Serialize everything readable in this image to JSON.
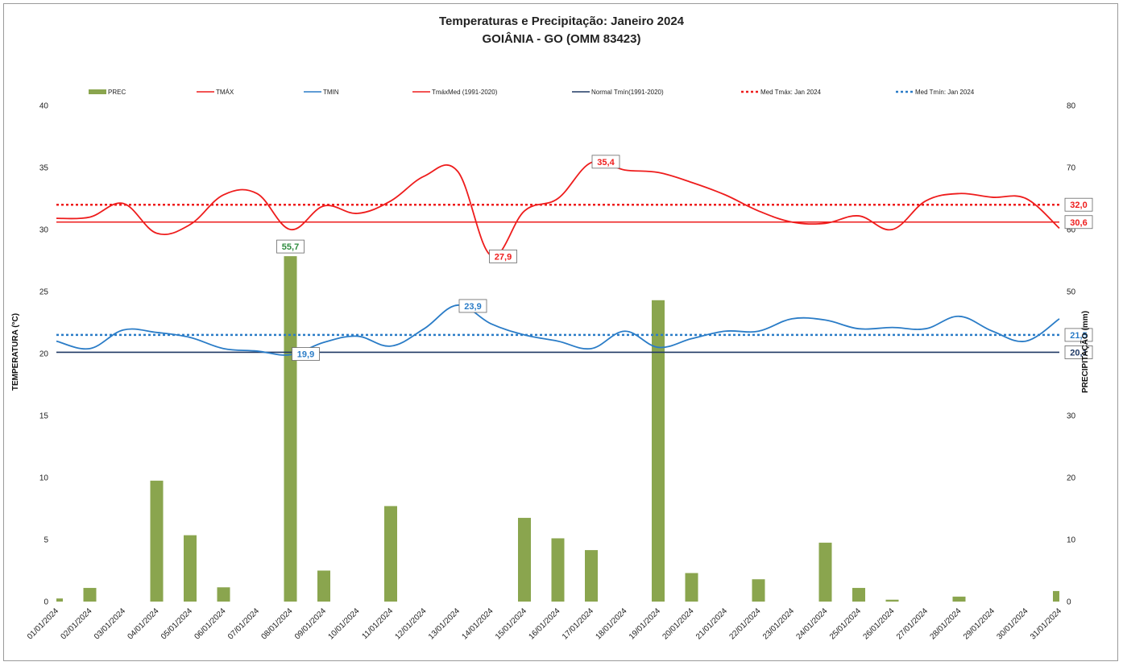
{
  "chart_data": {
    "type": "bar+line",
    "title": "Temperaturas e Precipitação: Janeiro 2024",
    "subtitle": "GOIÂNIA - GO (OMM 83423)",
    "ylabel_left": "TEMPERATURA  (°C)",
    "ylabel_right": "PRECIPITAÇÃO (mm)",
    "ylim_left": [
      0,
      40
    ],
    "ylim_right": [
      0,
      80
    ],
    "yticks_left": [
      "0",
      "5",
      "10",
      "15",
      "20",
      "25",
      "30",
      "35",
      "40"
    ],
    "yticks_right": [
      "0",
      "10",
      "20",
      "30",
      "40",
      "50",
      "60",
      "70",
      "80"
    ],
    "legend_position": "top",
    "categories": [
      "01/01/2024",
      "02/01/2024",
      "03/01/2024",
      "04/01/2024",
      "05/01/2024",
      "06/01/2024",
      "07/01/2024",
      "08/01/2024",
      "09/01/2024",
      "10/01/2024",
      "11/01/2024",
      "12/01/2024",
      "13/01/2024",
      "14/01/2024",
      "15/01/2024",
      "16/01/2024",
      "17/01/2024",
      "18/01/2024",
      "19/01/2024",
      "20/01/2024",
      "21/01/2024",
      "22/01/2024",
      "23/01/2024",
      "24/01/2024",
      "25/01/2024",
      "26/01/2024",
      "27/01/2024",
      "28/01/2024",
      "29/01/2024",
      "30/01/2024",
      "31/01/2024"
    ],
    "series": [
      {
        "name": "PREC",
        "kind": "bar",
        "axis": "right",
        "color": "#8aa54e",
        "values": [
          0.5,
          2.2,
          0,
          19.5,
          10.7,
          2.3,
          0,
          55.7,
          5.0,
          0,
          15.4,
          0,
          0,
          0,
          13.5,
          10.2,
          8.3,
          0,
          48.6,
          4.6,
          0,
          3.6,
          0,
          9.5,
          2.2,
          0.3,
          0,
          0.8,
          0,
          0,
          1.7
        ]
      },
      {
        "name": "TMÁX",
        "kind": "line",
        "axis": "left",
        "color": "#ee1c1c",
        "values": [
          30.9,
          31.0,
          32.1,
          29.7,
          30.4,
          32.8,
          32.9,
          30.0,
          31.9,
          31.3,
          32.3,
          34.3,
          34.7,
          27.9,
          31.5,
          32.5,
          35.4,
          34.8,
          34.6,
          33.8,
          32.8,
          31.5,
          30.6,
          30.5,
          31.1,
          30.0,
          32.3,
          32.9,
          32.6,
          32.5,
          30.1
        ]
      },
      {
        "name": "TMIN",
        "kind": "line",
        "axis": "left",
        "color": "#2a7cc7",
        "values": [
          21.0,
          20.4,
          21.9,
          21.7,
          21.3,
          20.4,
          20.2,
          19.9,
          20.9,
          21.4,
          20.6,
          22.0,
          23.9,
          22.4,
          21.5,
          21.0,
          20.4,
          21.8,
          20.5,
          21.2,
          21.8,
          21.8,
          22.8,
          22.7,
          22.0,
          22.1,
          22.0,
          23.0,
          21.8,
          21.0,
          22.8
        ]
      },
      {
        "name": "TmáxMed (1991-2020)",
        "kind": "hline",
        "axis": "left",
        "color": "#ee1c1c",
        "value": 30.6,
        "label": "30,6"
      },
      {
        "name": "Normal Tmín(1991-2020)",
        "kind": "hline",
        "axis": "left",
        "color": "#1f3864",
        "value": 20.1,
        "label": "20,1"
      },
      {
        "name": "Med Tmáx: Jan 2024",
        "kind": "dashed",
        "axis": "left",
        "color": "#ee1c1c",
        "value": 32.0,
        "label": "32,0"
      },
      {
        "name": "Med Tmín: Jan 2024",
        "kind": "dashed",
        "axis": "left",
        "color": "#2a7cc7",
        "value": 21.5,
        "label": "21,5"
      }
    ],
    "annotations": [
      {
        "text": "55,7",
        "day": 8,
        "series": "PREC",
        "color": "#2e8b3e"
      },
      {
        "text": "35,4",
        "day": 17,
        "series": "TMÁX",
        "color": "#ee1c1c"
      },
      {
        "text": "27,9",
        "day": 14,
        "series": "TMÁX",
        "color": "#ee1c1c"
      },
      {
        "text": "23,9",
        "day": 13,
        "series": "TMIN",
        "color": "#2a7cc7"
      },
      {
        "text": "19,9",
        "day": 8,
        "series": "TMIN",
        "color": "#2a7cc7"
      }
    ]
  }
}
